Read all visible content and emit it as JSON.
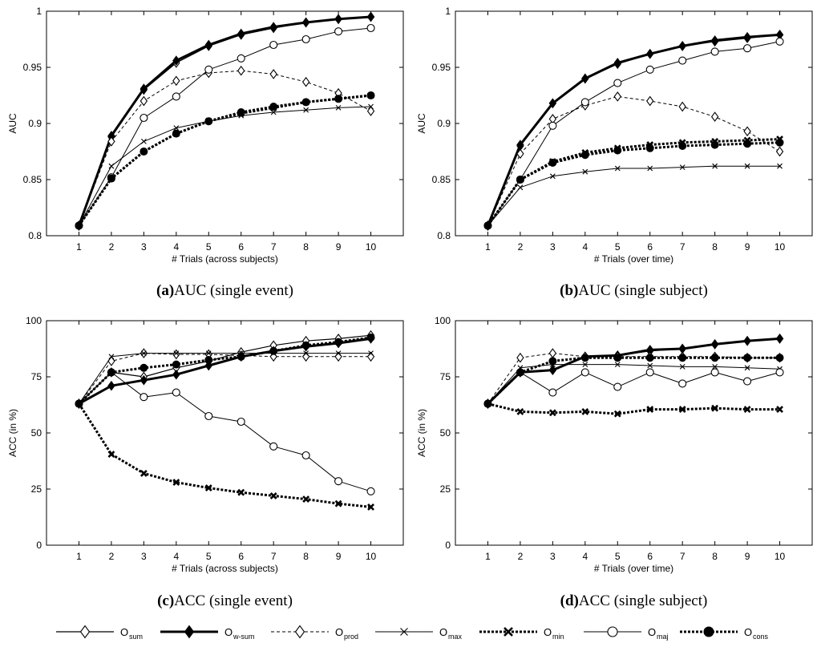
{
  "legend": {
    "symbol": "O",
    "items": [
      {
        "key": "sum",
        "sub": "sum"
      },
      {
        "key": "wsum",
        "sub": "w-sum"
      },
      {
        "key": "prod",
        "sub": "prod"
      },
      {
        "key": "max",
        "sub": "max"
      },
      {
        "key": "min",
        "sub": "min"
      },
      {
        "key": "maj",
        "sub": "maj"
      },
      {
        "key": "cons",
        "sub": "cons"
      }
    ]
  },
  "chart_data": [
    {
      "type": "line",
      "caption_letter": "a",
      "caption_text": "AUC (single event)",
      "xlabel": "# Trials (across subjects)",
      "ylabel": "AUC",
      "x": [
        1,
        2,
        3,
        4,
        5,
        6,
        7,
        8,
        9,
        10
      ],
      "xlim": [
        0,
        11
      ],
      "ylim": [
        0.8,
        1.0
      ],
      "yticks": [
        "0.8",
        "0.85",
        "0.9",
        "0.95",
        "1"
      ],
      "ytick_values": [
        0.8,
        0.85,
        0.9,
        0.95,
        1.0
      ],
      "grid": false,
      "series": [
        {
          "key": "sum",
          "values": [
            0.809,
            0.888,
            0.93,
            0.954,
            0.969,
            0.979,
            0.985,
            0.99,
            0.993,
            0.995
          ]
        },
        {
          "key": "wsum",
          "values": [
            0.809,
            0.889,
            0.931,
            0.956,
            0.97,
            0.98,
            0.986,
            0.99,
            0.993,
            0.995
          ]
        },
        {
          "key": "prod",
          "values": [
            0.809,
            0.884,
            0.92,
            0.938,
            0.945,
            0.947,
            0.944,
            0.937,
            0.927,
            0.911
          ]
        },
        {
          "key": "max",
          "values": [
            0.809,
            0.862,
            0.884,
            0.896,
            0.902,
            0.907,
            0.91,
            0.912,
            0.914,
            0.915
          ]
        },
        {
          "key": "min",
          "values": [
            0.809,
            0.851,
            0.875,
            0.891,
            0.902,
            0.909,
            0.914,
            0.919,
            0.922,
            0.925
          ]
        },
        {
          "key": "maj",
          "values": [
            0.809,
            0.852,
            0.905,
            0.924,
            0.948,
            0.958,
            0.97,
            0.975,
            0.982,
            0.985
          ]
        },
        {
          "key": "cons",
          "values": [
            0.809,
            0.851,
            0.875,
            0.891,
            0.902,
            0.91,
            0.915,
            0.919,
            0.922,
            0.925
          ]
        }
      ]
    },
    {
      "type": "line",
      "caption_letter": "b",
      "caption_text": "AUC (single subject)",
      "xlabel": "# Trials (over time)",
      "ylabel": "AUC",
      "x": [
        1,
        2,
        3,
        4,
        5,
        6,
        7,
        8,
        9,
        10
      ],
      "xlim": [
        0,
        11
      ],
      "ylim": [
        0.8,
        1.0
      ],
      "yticks": [
        "0.8",
        "0.85",
        "0.9",
        "0.95",
        "1"
      ],
      "ytick_values": [
        0.8,
        0.85,
        0.9,
        0.95,
        1.0
      ],
      "grid": false,
      "series": [
        {
          "key": "sum",
          "values": [
            0.809,
            0.88,
            0.918,
            0.94,
            0.953,
            0.962,
            0.969,
            0.973,
            0.976,
            0.979
          ]
        },
        {
          "key": "wsum",
          "values": [
            0.809,
            0.881,
            0.918,
            0.94,
            0.954,
            0.962,
            0.969,
            0.974,
            0.977,
            0.979
          ]
        },
        {
          "key": "prod",
          "values": [
            0.809,
            0.873,
            0.904,
            0.916,
            0.924,
            0.92,
            0.915,
            0.906,
            0.893,
            0.875
          ]
        },
        {
          "key": "max",
          "values": [
            0.809,
            0.843,
            0.853,
            0.857,
            0.86,
            0.86,
            0.861,
            0.862,
            0.862,
            0.862
          ]
        },
        {
          "key": "min",
          "values": [
            0.809,
            0.85,
            0.866,
            0.874,
            0.878,
            0.881,
            0.883,
            0.884,
            0.885,
            0.886
          ]
        },
        {
          "key": "maj",
          "values": [
            0.809,
            0.85,
            0.898,
            0.919,
            0.936,
            0.948,
            0.956,
            0.964,
            0.967,
            0.973
          ]
        },
        {
          "key": "cons",
          "values": [
            0.809,
            0.85,
            0.865,
            0.872,
            0.876,
            0.878,
            0.88,
            0.881,
            0.882,
            0.883
          ]
        }
      ]
    },
    {
      "type": "line",
      "caption_letter": "c",
      "caption_text": "ACC (single event)",
      "xlabel": "# Trials (across subjects)",
      "ylabel": "ACC (in %)",
      "x": [
        1,
        2,
        3,
        4,
        5,
        6,
        7,
        8,
        9,
        10
      ],
      "xlim": [
        0,
        11
      ],
      "ylim": [
        0,
        100
      ],
      "yticks": [
        "0",
        "25",
        "50",
        "75",
        "100"
      ],
      "ytick_values": [
        0,
        25,
        50,
        75,
        100
      ],
      "grid": false,
      "series": [
        {
          "key": "sum",
          "values": [
            63,
            77,
            75,
            79,
            82,
            86,
            89,
            91,
            92,
            93.5
          ]
        },
        {
          "key": "wsum",
          "values": [
            63,
            71,
            73.5,
            76,
            80,
            84,
            86.5,
            88.5,
            90,
            92
          ]
        },
        {
          "key": "prod",
          "values": [
            63,
            82,
            85.5,
            85,
            85,
            84.5,
            84,
            84,
            84,
            84
          ]
        },
        {
          "key": "max",
          "values": [
            63,
            84,
            85.5,
            85.5,
            85.5,
            85.5,
            85.5,
            85.5,
            85.5,
            85.5
          ]
        },
        {
          "key": "min",
          "values": [
            63,
            40.5,
            32,
            28,
            25.5,
            23.5,
            22,
            20.5,
            18.5,
            17
          ]
        },
        {
          "key": "maj",
          "values": [
            63,
            77,
            66,
            68,
            57.5,
            55,
            44,
            40,
            28.5,
            24
          ]
        },
        {
          "key": "cons",
          "values": [
            63,
            77,
            79,
            80.5,
            82.5,
            84,
            86.5,
            89,
            90.5,
            92.5
          ]
        }
      ]
    },
    {
      "type": "line",
      "caption_letter": "d",
      "caption_text": "ACC (single subject)",
      "xlabel": "# Trials (over time)",
      "ylabel": "ACC (in %)",
      "x": [
        1,
        2,
        3,
        4,
        5,
        6,
        7,
        8,
        9,
        10
      ],
      "xlim": [
        0,
        11
      ],
      "ylim": [
        0,
        100
      ],
      "yticks": [
        "0",
        "25",
        "50",
        "75",
        "100"
      ],
      "ytick_values": [
        0,
        25,
        50,
        75,
        100
      ],
      "grid": false,
      "series": [
        {
          "key": "sum",
          "values": [
            63,
            77,
            78,
            84,
            84.5,
            86.5,
            87.5,
            89.5,
            91,
            92
          ]
        },
        {
          "key": "wsum",
          "values": [
            63,
            77,
            78,
            84,
            84.5,
            87,
            87.5,
            89.5,
            91,
            92
          ]
        },
        {
          "key": "prod",
          "values": [
            63,
            83.5,
            85.5,
            84,
            84,
            84,
            84,
            84,
            83.5,
            83.5
          ]
        },
        {
          "key": "max",
          "values": [
            63,
            79,
            80.5,
            80.5,
            80.5,
            80,
            79.5,
            79.5,
            79,
            78.5
          ]
        },
        {
          "key": "min",
          "values": [
            63,
            59.5,
            59,
            59.5,
            58.5,
            60.5,
            60.5,
            61,
            60.5,
            60.5
          ]
        },
        {
          "key": "maj",
          "values": [
            63,
            77,
            68,
            77,
            70.5,
            77,
            72,
            77,
            73,
            77
          ]
        },
        {
          "key": "cons",
          "values": [
            63,
            77,
            82,
            83.5,
            83.5,
            83.5,
            83.5,
            83.5,
            83.5,
            83.5
          ]
        }
      ]
    }
  ]
}
